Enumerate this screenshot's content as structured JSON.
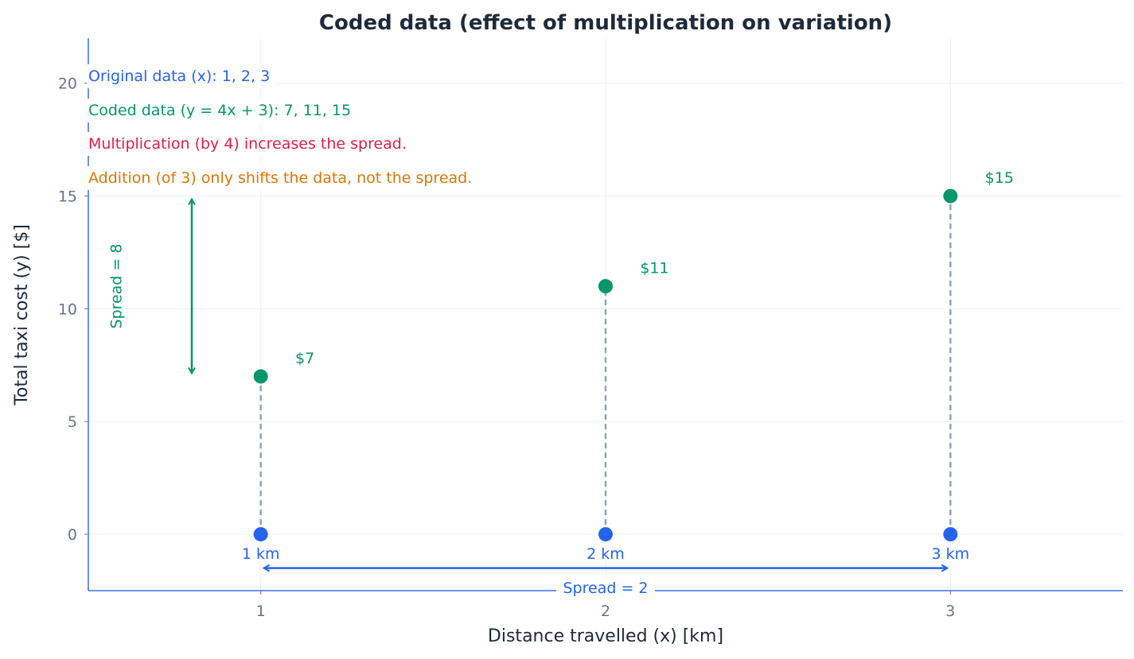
{
  "chart_data": {
    "type": "scatter",
    "title": "Coded data (effect of multiplication on variation)",
    "xlabel": "Distance travelled (x) [km]",
    "ylabel": "Total taxi cost (y) [$]",
    "xlim": [
      0.5,
      3.5
    ],
    "ylim": [
      -2.5,
      22
    ],
    "xticks": [
      1,
      2,
      3
    ],
    "yticks": [
      0,
      5,
      10,
      15,
      20
    ],
    "grid": true,
    "series": [
      {
        "x": [
          1,
          2,
          3
        ],
        "y": [
          0,
          0,
          0
        ],
        "labels": [
          "1 km",
          "2 km",
          "3 km"
        ],
        "color": "#2563eb"
      },
      {
        "x": [
          1,
          2,
          3
        ],
        "y": [
          7,
          11,
          15
        ],
        "labels": [
          "$7",
          "$11",
          "$15"
        ],
        "color": "#059669"
      }
    ],
    "connector_color": "#94a3b8",
    "annotations": {
      "x_spread": {
        "label": "Spread = 2",
        "from": 1,
        "to": 3,
        "y": -1.5,
        "color": "#2563eb"
      },
      "y_spread": {
        "label": "Spread = 8",
        "from": 7,
        "to": 15,
        "x": 0.8,
        "color": "#059669"
      }
    },
    "notes": [
      {
        "text": "Original data (x): 1, 2, 3",
        "color": "#2563eb"
      },
      {
        "text": "Coded data (y = 4x + 3): 7, 11, 15",
        "color": "#059669"
      },
      {
        "text": "Multiplication (by 4) increases the spread.",
        "color": "#e11d48"
      },
      {
        "text": "Addition (of 3) only shifts the data, not the spread.",
        "color": "#d97706"
      }
    ]
  }
}
